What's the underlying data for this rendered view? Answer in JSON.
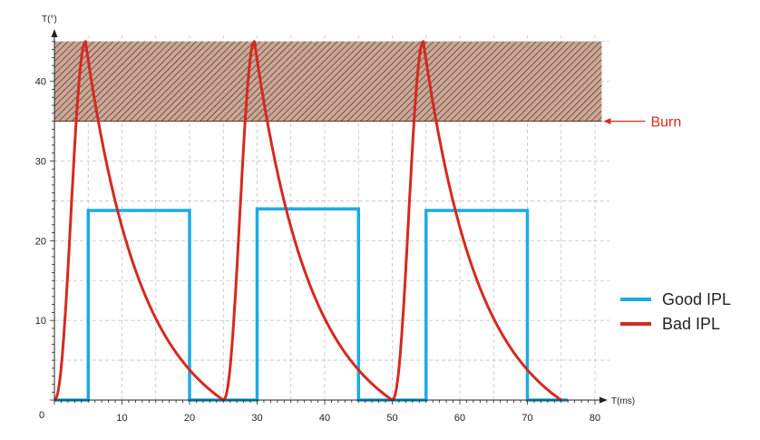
{
  "chart_data": {
    "type": "line",
    "xlabel": "T(ms)",
    "ylabel": "T(°)",
    "xlim": [
      0,
      80
    ],
    "ylim": [
      0,
      46
    ],
    "x_ticks": [
      0,
      10,
      20,
      30,
      40,
      50,
      60,
      70,
      80
    ],
    "y_ticks": [
      10,
      20,
      30,
      40
    ],
    "grid": true,
    "legend_position": "right",
    "burn_zone": {
      "label": "Burn",
      "y_min": 35,
      "y_max": 45
    },
    "series": [
      {
        "name": "Good IPL",
        "color": "#1cabe2",
        "style": "step",
        "points": [
          [
            0,
            0
          ],
          [
            5,
            0
          ],
          [
            5,
            23.8
          ],
          [
            20,
            23.8
          ],
          [
            20,
            0
          ],
          [
            30,
            0
          ],
          [
            30,
            24
          ],
          [
            45,
            24
          ],
          [
            45,
            0
          ],
          [
            55,
            0
          ],
          [
            55,
            23.8
          ],
          [
            70,
            23.8
          ],
          [
            70,
            0
          ],
          [
            76,
            0
          ]
        ]
      },
      {
        "name": "Bad IPL",
        "color": "#d42a20",
        "style": "pulses",
        "pulses": [
          {
            "start": 0,
            "peak_x": 4.6,
            "peak_y": 45,
            "end": 25,
            "rise_shape": 2.2,
            "decay_k": 2.6
          },
          {
            "start": 25,
            "peak_x": 29.6,
            "peak_y": 45,
            "end": 50,
            "rise_shape": 2.2,
            "decay_k": 2.6
          },
          {
            "start": 50,
            "peak_x": 54.6,
            "peak_y": 45,
            "end": 75,
            "rise_shape": 2.2,
            "decay_k": 2.6
          }
        ]
      }
    ]
  }
}
